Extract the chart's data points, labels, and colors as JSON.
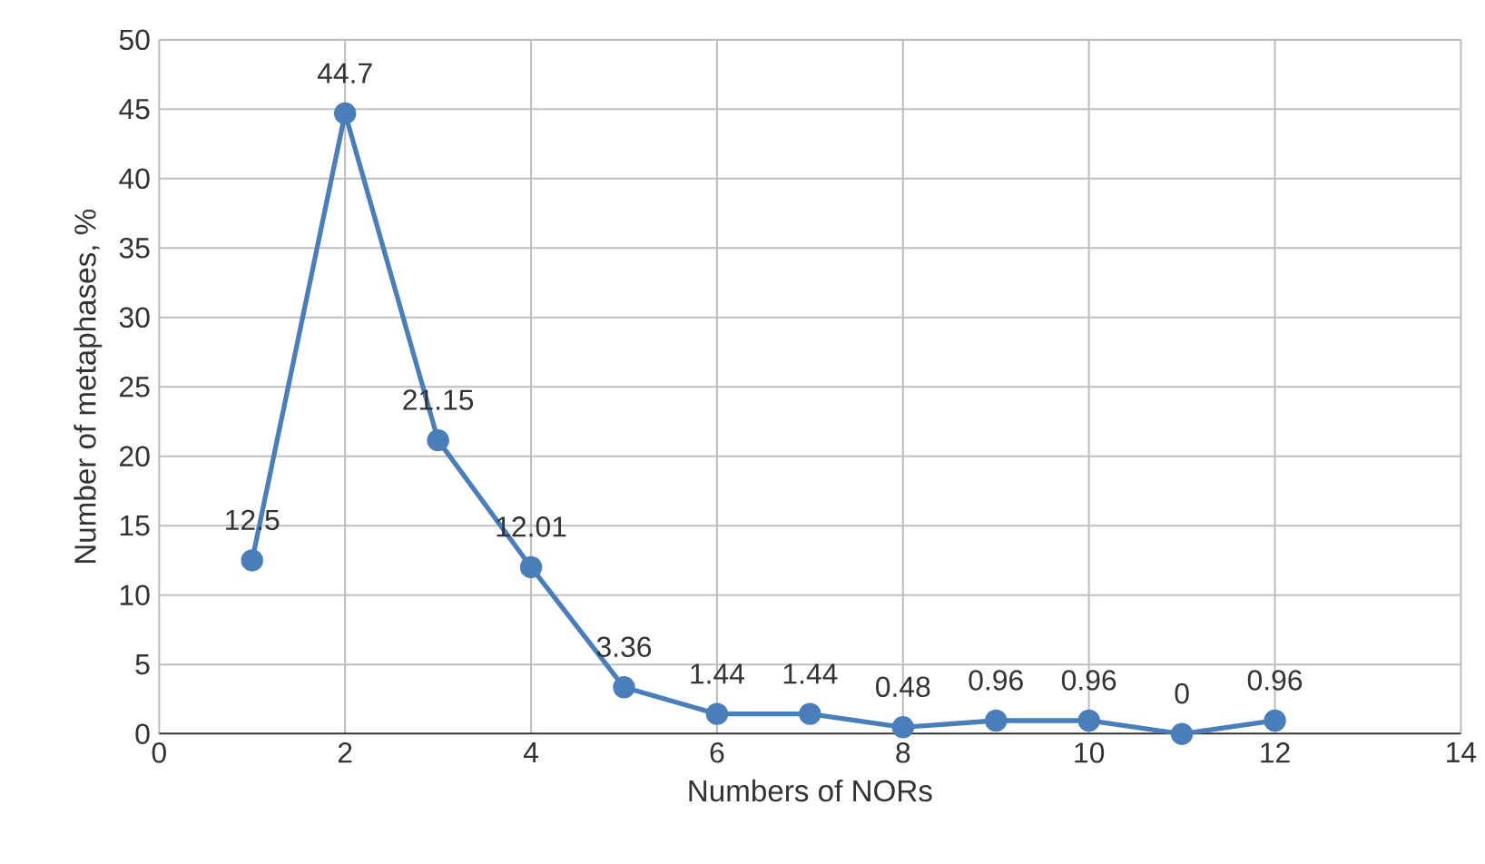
{
  "chart_data": {
    "type": "line",
    "xlabel": "Numbers of NORs",
    "ylabel": "Number of metaphases, %",
    "x": [
      1,
      2,
      3,
      4,
      5,
      6,
      7,
      8,
      9,
      10,
      11,
      12
    ],
    "series": [
      {
        "color": "#4a7ebb",
        "values": [
          12.5,
          44.7,
          21.15,
          12.01,
          3.36,
          1.44,
          1.44,
          0.48,
          0.96,
          0.96,
          0,
          0.96
        ]
      }
    ],
    "xlim": [
      0,
      14
    ],
    "xticks": [
      0,
      2,
      4,
      6,
      8,
      10,
      12,
      14
    ],
    "ylim": [
      0,
      50
    ],
    "yticks": [
      0,
      5,
      10,
      15,
      20,
      25,
      30,
      35,
      40,
      45,
      50
    ],
    "grid": true,
    "marker": "circle",
    "line_style": "solid",
    "data_labels": true
  }
}
